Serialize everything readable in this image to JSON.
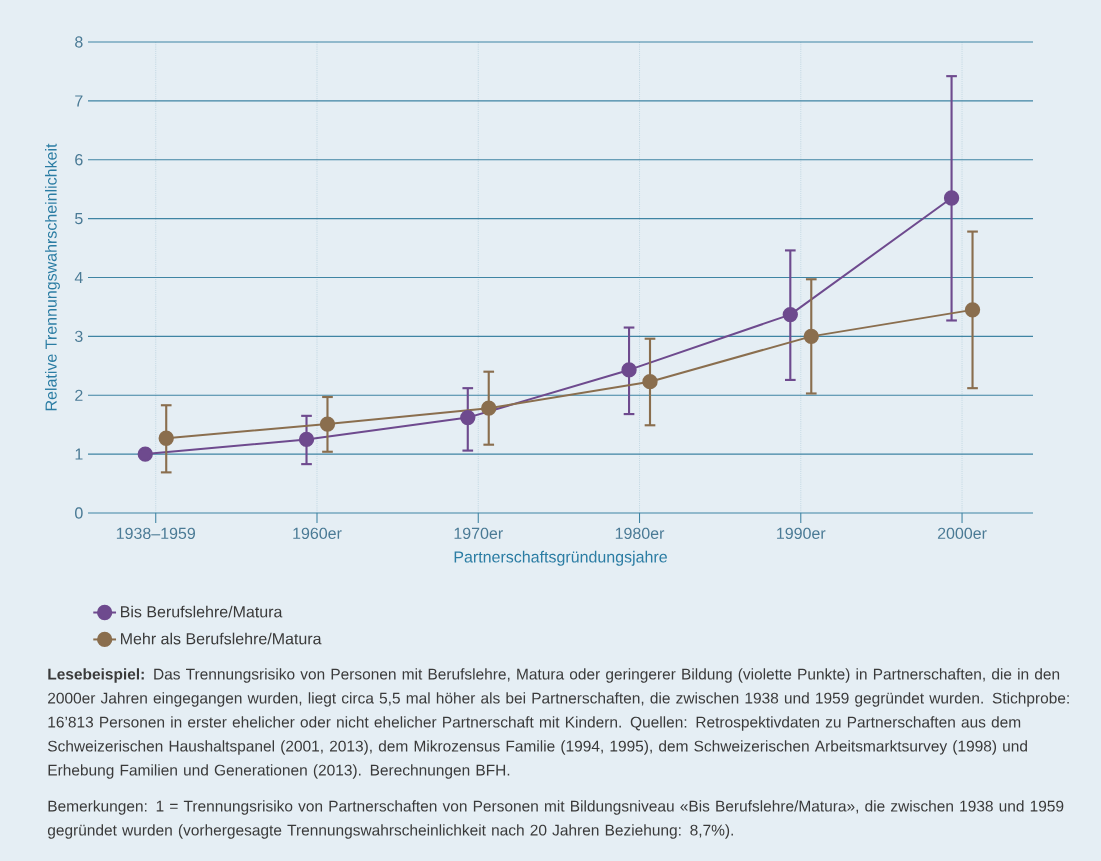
{
  "chart_data": {
    "type": "line",
    "xlabel": "Partnerschaftsgründungsjahre",
    "ylabel": "Relative Trennungswahrscheinlichkeit",
    "categories": [
      "1938–1959",
      "1960er",
      "1970er",
      "1980er",
      "1990er",
      "2000er"
    ],
    "series": [
      {
        "name": "Bis Berufslehre/Matura",
        "color": "#6e4a8e",
        "values": [
          1.0,
          1.25,
          1.62,
          2.43,
          3.37,
          5.35
        ],
        "errors": [
          null,
          [
            0.83,
            1.65
          ],
          [
            1.06,
            2.12
          ],
          [
            1.68,
            3.15
          ],
          [
            2.26,
            4.46
          ],
          [
            3.27,
            7.42
          ]
        ]
      },
      {
        "name": "Mehr als Berufslehre/Matura",
        "color": "#8a6e4e",
        "values": [
          1.27,
          1.51,
          1.78,
          2.23,
          3.0,
          3.45
        ],
        "errors": [
          [
            0.69,
            1.83
          ],
          [
            1.04,
            1.97
          ],
          [
            1.16,
            2.4
          ],
          [
            1.49,
            2.96
          ],
          [
            2.03,
            3.97
          ],
          [
            2.12,
            4.78
          ]
        ]
      }
    ],
    "ylim": [
      0,
      8
    ],
    "yticks": [
      0,
      1,
      2,
      3,
      4,
      5,
      6,
      7,
      8
    ],
    "grid": true,
    "legend": "bottom left",
    "marker": "circle",
    "line_style": "solid",
    "annotations": [
      "**Lesebeispiel:** Das Trennungsrisiko von Personen mit Berufslehre, Matura oder geringerer Bildung (violette Punkte) in Partnerschaften, die in den 2000er Jahren eingegangen wurden, liegt circa 5,5 mal höher als bei Partnerschaften, die zwischen 1938 und 1959 gegründet wurden. Stichprobe: 16’813 Personen in erster ehelicher oder nicht ehelicher Partnerschaft mit Kindern. Quellen: Retrospektivdaten zu Partnerschaften aus dem Schweizerischen Haushaltspanel (2001, 2013), dem Mikrozensus Familie (1994, 1995), dem Schweizerischen Arbeitsmarktsurvey (1998) und Erhebung Familien und Generationen (2013). Berechnungen BFH.",
      "Bemerkungen: 1 = Trennungsrisiko von Partnerschaften von Personen mit Bildungsniveau «Bis Berufslehre/Matura», die zwischen 1938 und 1959 gegründet wurden (vorhergesagte Trennungswahrscheinlichkeit nach 20 Jahren Beziehung: 8,7%)."
    ]
  }
}
